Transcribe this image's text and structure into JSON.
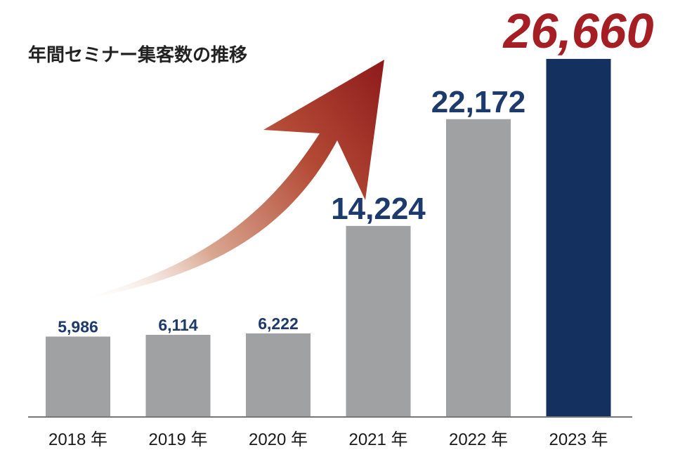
{
  "chart_data": {
    "type": "bar",
    "title": "年間セミナー集客数の推移",
    "categories": [
      "2018 年",
      "2019 年",
      "2020 年",
      "2021 年",
      "2022 年",
      "2023 年"
    ],
    "values": [
      5986,
      6114,
      6222,
      14224,
      22172,
      26660
    ],
    "value_labels": [
      "5,986",
      "6,114",
      "6,222",
      "14,224",
      "22,172",
      "26,660"
    ],
    "ylim": [
      0,
      30000
    ],
    "grid": false,
    "legend": "none",
    "highlight_index": 5
  },
  "colors": {
    "bar": "#a0a1a2",
    "highlight_bar": "#14305e",
    "value_label": "#1c3a6b",
    "highlight_label": "#a51e24",
    "arrow": "#9c2a24",
    "baseline": "#777777"
  },
  "decorations": {
    "arrow": "upward-trend-arrow"
  }
}
